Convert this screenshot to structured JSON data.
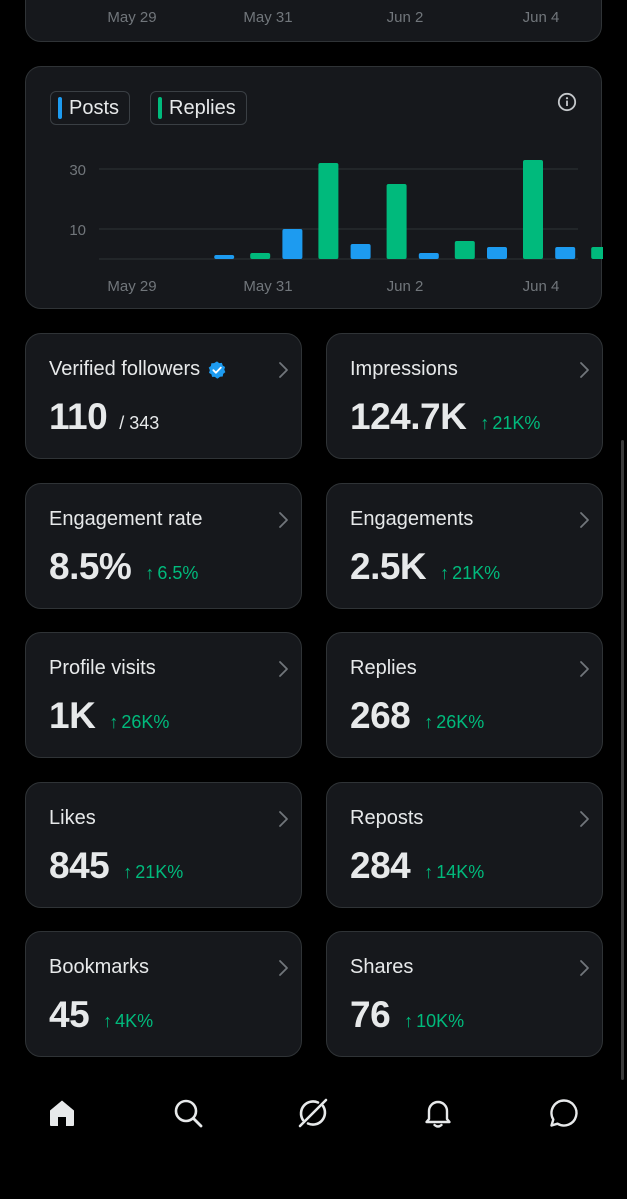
{
  "top_chart": {
    "x_labels": [
      "May 29",
      "May 31",
      "Jun 2",
      "Jun 4"
    ]
  },
  "activity_chart": {
    "legend": {
      "posts_label": "Posts",
      "replies_label": "Replies"
    },
    "info_icon": "info-icon",
    "colors": {
      "posts": "#1d9bf0",
      "replies": "#00ba7c",
      "grid": "#2f3336",
      "tick_text": "#71767b"
    }
  },
  "chart_data": {
    "type": "bar",
    "title": "",
    "xlabel": "",
    "ylabel": "",
    "ylim": [
      0,
      33
    ],
    "yticks": [
      10,
      30
    ],
    "x_tick_labels": [
      "May 29",
      "May 31",
      "Jun 2",
      "Jun 4"
    ],
    "categories": [
      "May 29",
      "May 30",
      "May 31",
      "Jun 1",
      "Jun 2",
      "Jun 3",
      "Jun 4"
    ],
    "series": [
      {
        "name": "Posts",
        "values": [
          0,
          1,
          10,
          5,
          2,
          4,
          4
        ]
      },
      {
        "name": "Replies",
        "values": [
          0,
          2,
          32,
          25,
          6,
          33,
          4
        ]
      }
    ]
  },
  "metrics": [
    {
      "key": "verified_followers",
      "label": "Verified followers",
      "value": "110",
      "total": "/ 343",
      "delta": "",
      "verified_icon": true
    },
    {
      "key": "impressions",
      "label": "Impressions",
      "value": "124.7K",
      "total": "",
      "delta": "21K%"
    },
    {
      "key": "engagement_rate",
      "label": "Engagement rate",
      "value": "8.5%",
      "total": "",
      "delta": "6.5%"
    },
    {
      "key": "engagements",
      "label": "Engagements",
      "value": "2.5K",
      "total": "",
      "delta": "21K%"
    },
    {
      "key": "profile_visits",
      "label": "Profile visits",
      "value": "1K",
      "total": "",
      "delta": "26K%"
    },
    {
      "key": "replies",
      "label": "Replies",
      "value": "268",
      "total": "",
      "delta": "26K%"
    },
    {
      "key": "likes",
      "label": "Likes",
      "value": "845",
      "total": "",
      "delta": "21K%"
    },
    {
      "key": "reposts",
      "label": "Reposts",
      "value": "284",
      "total": "",
      "delta": "14K%"
    },
    {
      "key": "bookmarks",
      "label": "Bookmarks",
      "value": "45",
      "total": "",
      "delta": "4K%"
    },
    {
      "key": "shares",
      "label": "Shares",
      "value": "76",
      "total": "",
      "delta": "10K%"
    }
  ],
  "delta_arrow": "↑",
  "bottom_nav": {
    "items": [
      "home-icon",
      "search-icon",
      "grok-icon",
      "notifications-icon",
      "messages-icon"
    ]
  },
  "theme": {
    "background": "#000000",
    "card": "#16181c",
    "border": "#2f3336",
    "positive": "#00ba7c",
    "accent": "#1d9bf0"
  }
}
